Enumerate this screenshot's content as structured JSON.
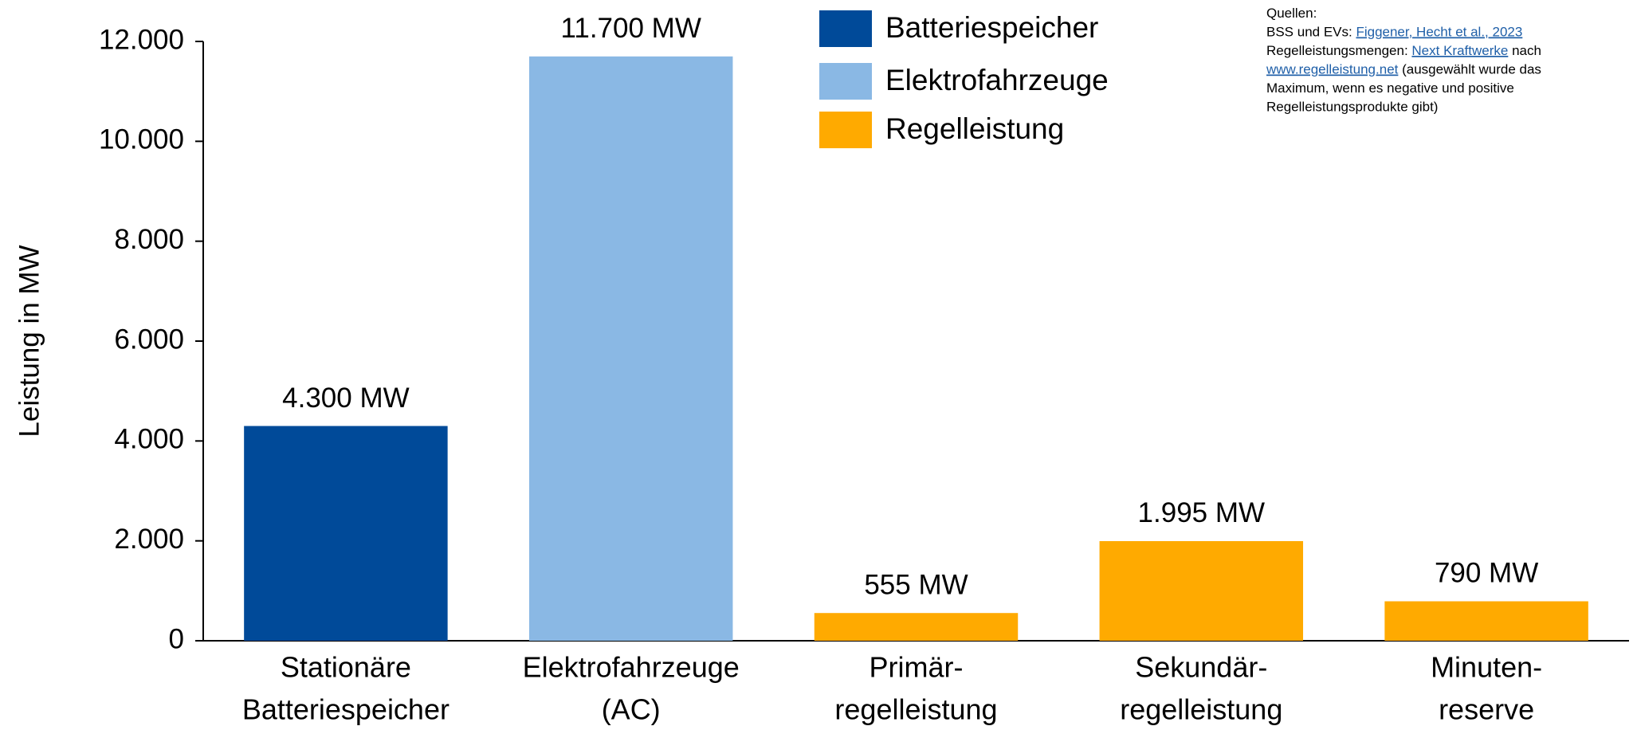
{
  "chart_data": {
    "type": "bar",
    "y_label": "Leistung in MW",
    "categories": [
      [
        "Stationäre",
        "Batteriespeicher"
      ],
      [
        "Elektrofahrzeuge",
        "(AC)"
      ],
      [
        "Primär-",
        "regelleistung"
      ],
      [
        "Sekundär-",
        "regelleistung"
      ],
      [
        "Minuten-",
        "reserve"
      ]
    ],
    "values": [
      4300,
      11700,
      555,
      1995,
      790
    ],
    "value_labels": [
      "4.300 MW",
      "11.700 MW",
      "555 MW",
      "1.995 MW",
      "790 MW"
    ],
    "bar_colors": [
      "#004a99",
      "#8ab8e4",
      "#ffaa00",
      "#ffaa00",
      "#ffaa00"
    ],
    "legend": [
      {
        "name": "Batteriespeicher",
        "color": "#004a99"
      },
      {
        "name": "Elektrofahrzeuge",
        "color": "#8ab8e4"
      },
      {
        "name": "Regelleistung",
        "color": "#ffaa00"
      }
    ],
    "ylim": [
      0,
      12000
    ],
    "yticks": [
      0,
      {
        "value": 2000,
        "label": "2.000"
      },
      {
        "value": 4000,
        "label": "4.000"
      },
      {
        "value": 6000,
        "label": "6.000"
      },
      {
        "value": 8000,
        "label": "8.000"
      },
      {
        "value": 10000,
        "label": "10.000"
      },
      {
        "value": 12000,
        "label": "12.000"
      }
    ],
    "grid": false,
    "sources": [
      [
        {
          "text": "Quellen:"
        }
      ],
      [
        {
          "text": "BSS und EVs: "
        },
        {
          "text": "Figgener, Hecht et al., 2023",
          "link": true
        }
      ],
      [
        {
          "text": "Regelleistungsmengen: "
        },
        {
          "text": "Next Kraftwerke",
          "link": true
        },
        {
          "text": " nach"
        }
      ],
      [
        {
          "text": "www.regelleistung.net",
          "link": true
        },
        {
          "text": " (ausgewählt wurde das"
        }
      ],
      [
        {
          "text": "Maximum, wenn es negative und positive"
        }
      ],
      [
        {
          "text": "Regelleistungsprodukte gibt)"
        }
      ]
    ]
  }
}
